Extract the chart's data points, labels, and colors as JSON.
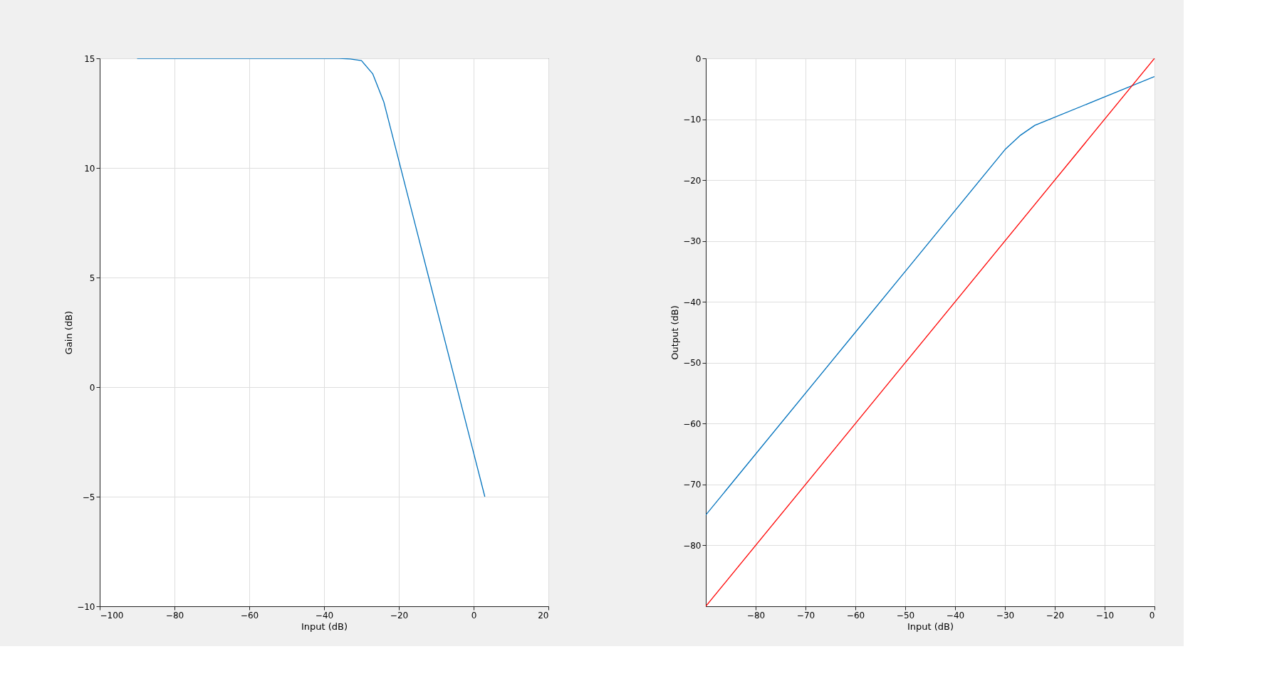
{
  "chart_data": [
    {
      "type": "line",
      "xlabel": "Input (dB)",
      "ylabel": "Gain (dB)",
      "xlim": [
        -100,
        20
      ],
      "ylim": [
        -10,
        15
      ],
      "xticks": [
        -100,
        -80,
        -60,
        -40,
        -20,
        0,
        20
      ],
      "yticks": [
        -10,
        -5,
        0,
        5,
        10,
        15
      ],
      "grid": true,
      "series": [
        {
          "color": "#0072bd",
          "x": [
            -90,
            -60,
            -40,
            -36,
            -33,
            -30,
            -27,
            -24,
            -21,
            -18,
            -15,
            -12,
            -9,
            -6,
            -3,
            0,
            3
          ],
          "values": [
            15,
            15,
            15,
            15,
            14.97,
            14.9,
            14.3,
            13,
            11,
            9,
            7,
            5,
            3,
            1,
            -1,
            -3,
            -5
          ]
        }
      ]
    },
    {
      "type": "line",
      "xlabel": "Input (dB)",
      "ylabel": "Output (dB)",
      "xlim": [
        -90,
        0
      ],
      "ylim": [
        -90,
        0
      ],
      "xticks": [
        -80,
        -70,
        -60,
        -50,
        -40,
        -30,
        -20,
        -10,
        0
      ],
      "yticks": [
        -80,
        -70,
        -60,
        -50,
        -40,
        -30,
        -20,
        -10,
        0
      ],
      "grid": true,
      "series": [
        {
          "color": "#0072bd",
          "x": [
            -90,
            -60,
            -30,
            -27,
            -24,
            -12,
            0
          ],
          "values": [
            -75,
            -45,
            -15,
            -12.7,
            -11,
            -7,
            -3
          ]
        },
        {
          "color": "#ff0000",
          "x": [
            -90,
            0
          ],
          "values": [
            -90,
            0
          ]
        }
      ]
    }
  ]
}
